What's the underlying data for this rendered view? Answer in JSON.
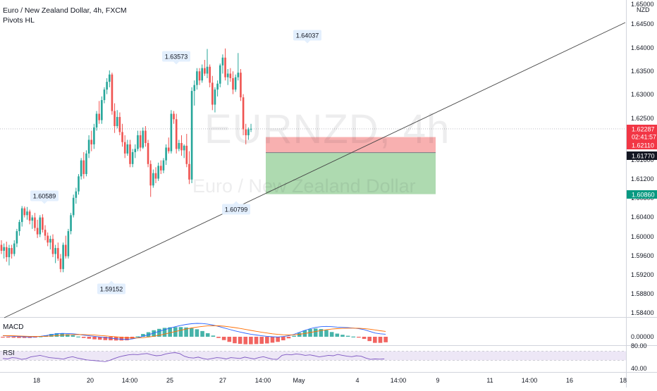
{
  "header": {
    "title": "Euro / New Zealand Dollar, 4h, FXCM",
    "indicator": "Pivots HL"
  },
  "watermark": {
    "symbol": "EURNZD, 4h",
    "name": "Euro / New Zealand Dollar"
  },
  "colors": {
    "up": "#26a69a",
    "down": "#ef5350",
    "stop_zone": "#f7a7a7",
    "target_zone": "#a5d6a7",
    "trendline": "#444444",
    "rsi_line": "#7e57c2",
    "rsi_band": "#ede7f6",
    "macd_line": "#2962ff",
    "signal_line": "#ff6d00",
    "price_label_bg": "#f23645",
    "target_label_bg": "#089981",
    "entry_label_bg": "#131722"
  },
  "chart_data": [
    {
      "type": "candlestick",
      "title": "Euro / New Zealand Dollar, 4h, FXCM",
      "currency": "NZD",
      "ylim": [
        1.582,
        1.6505
      ],
      "y_ticks": [
        "1.65000",
        "1.64500",
        "1.64000",
        "1.63500",
        "1.63000",
        "1.62500",
        "1.62000",
        "1.61600",
        "1.61200",
        "1.60800",
        "1.60400",
        "1.60000",
        "1.59600",
        "1.59200",
        "1.58800",
        "1.58400"
      ],
      "x_ticks": [
        "18",
        "20",
        "14:00",
        "25",
        "27",
        "14:00",
        "May",
        "4",
        "14:00",
        "9",
        "11",
        "14:00",
        "16",
        "18"
      ],
      "ohlc": [
        [
          1.5975,
          1.5985,
          1.5955,
          1.5962
        ],
        [
          1.5962,
          1.5978,
          1.5945,
          1.597
        ],
        [
          1.597,
          1.5982,
          1.5938,
          1.5948
        ],
        [
          1.5948,
          1.5975,
          1.593,
          1.5968
        ],
        [
          1.5968,
          1.5975,
          1.5945,
          1.5955
        ],
        [
          1.5955,
          1.5985,
          1.595,
          1.5978
        ],
        [
          1.5978,
          1.601,
          1.597,
          1.6005
        ],
        [
          1.6005,
          1.603,
          1.5995,
          1.6025
        ],
        [
          1.6025,
          1.606,
          1.6015,
          1.6055
        ],
        [
          1.6055,
          1.6059,
          1.6035,
          1.604
        ],
        [
          1.604,
          1.6058,
          1.603,
          1.6048
        ],
        [
          1.6048,
          1.6052,
          1.602,
          1.6028
        ],
        [
          1.6028,
          1.604,
          1.601,
          1.6035
        ],
        [
          1.6035,
          1.6045,
          1.6005,
          1.6012
        ],
        [
          1.6012,
          1.603,
          1.599,
          1.5998
        ],
        [
          1.5998,
          1.604,
          1.5992,
          1.6035
        ],
        [
          1.6035,
          1.6042,
          1.6002,
          1.6008
        ],
        [
          1.6008,
          1.6018,
          1.5985,
          1.5995
        ],
        [
          1.5995,
          1.6002,
          1.5972,
          1.598
        ],
        [
          1.598,
          1.5995,
          1.5965,
          1.5988
        ],
        [
          1.5988,
          1.5998,
          1.5948,
          1.5955
        ],
        [
          1.5955,
          1.5975,
          1.5935,
          1.5968
        ],
        [
          1.5968,
          1.598,
          1.594,
          1.5945
        ],
        [
          1.5945,
          1.5955,
          1.5915,
          1.5922
        ],
        [
          1.5922,
          1.598,
          1.5915,
          1.5975
        ],
        [
          1.5975,
          1.5995,
          1.5945,
          1.595
        ],
        [
          1.595,
          1.601,
          1.5945,
          1.6005
        ],
        [
          1.6005,
          1.6045,
          1.5998,
          1.604
        ],
        [
          1.604,
          1.6085,
          1.6035,
          1.6078
        ],
        [
          1.6078,
          1.61,
          1.6065,
          1.6092
        ],
        [
          1.6092,
          1.613,
          1.6085,
          1.6125
        ],
        [
          1.6125,
          1.6165,
          1.6118,
          1.616
        ],
        [
          1.616,
          1.6178,
          1.612,
          1.613
        ],
        [
          1.613,
          1.6182,
          1.6125,
          1.6175
        ],
        [
          1.6175,
          1.6215,
          1.6165,
          1.6205
        ],
        [
          1.6205,
          1.6225,
          1.618,
          1.6195
        ],
        [
          1.6195,
          1.624,
          1.6185,
          1.6232
        ],
        [
          1.6232,
          1.6268,
          1.6225,
          1.6262
        ],
        [
          1.6262,
          1.629,
          1.624,
          1.6248
        ],
        [
          1.6248,
          1.63,
          1.624,
          1.6292
        ],
        [
          1.6292,
          1.632,
          1.6285,
          1.6315
        ],
        [
          1.6315,
          1.634,
          1.6305,
          1.6332
        ],
        [
          1.6332,
          1.6357,
          1.632,
          1.6348
        ],
        [
          1.6348,
          1.6352,
          1.626,
          1.6268
        ],
        [
          1.6268,
          1.6285,
          1.622,
          1.6235
        ],
        [
          1.6235,
          1.627,
          1.623,
          1.6255
        ],
        [
          1.6255,
          1.6265,
          1.6215,
          1.6222
        ],
        [
          1.6222,
          1.624,
          1.619,
          1.62
        ],
        [
          1.62,
          1.6215,
          1.6165,
          1.6175
        ],
        [
          1.6175,
          1.6205,
          1.617,
          1.6195
        ],
        [
          1.6195,
          1.6205,
          1.6145,
          1.6152
        ],
        [
          1.6152,
          1.6185,
          1.6145,
          1.6178
        ],
        [
          1.6178,
          1.6195,
          1.6165,
          1.6185
        ],
        [
          1.6185,
          1.6225,
          1.618,
          1.6215
        ],
        [
          1.6215,
          1.6225,
          1.618,
          1.6188
        ],
        [
          1.6188,
          1.6232,
          1.6185,
          1.6225
        ],
        [
          1.6225,
          1.6235,
          1.619,
          1.6198
        ],
        [
          1.6198,
          1.6205,
          1.6145,
          1.6152
        ],
        [
          1.6152,
          1.616,
          1.608,
          1.6105
        ],
        [
          1.6105,
          1.614,
          1.61,
          1.6132
        ],
        [
          1.6132,
          1.6145,
          1.611,
          1.612
        ],
        [
          1.612,
          1.6155,
          1.6115,
          1.6148
        ],
        [
          1.6148,
          1.616,
          1.613,
          1.6138
        ],
        [
          1.6138,
          1.6165,
          1.6132,
          1.616
        ],
        [
          1.616,
          1.6195,
          1.615,
          1.6188
        ],
        [
          1.6188,
          1.621,
          1.6175,
          1.618
        ],
        [
          1.618,
          1.627,
          1.6175,
          1.6262
        ],
        [
          1.6262,
          1.6268,
          1.624,
          1.625
        ],
        [
          1.625,
          1.6262,
          1.6175,
          1.6185
        ],
        [
          1.6185,
          1.6205,
          1.618,
          1.6198
        ],
        [
          1.6198,
          1.6215,
          1.617,
          1.6182
        ],
        [
          1.6182,
          1.6195,
          1.6165,
          1.6192
        ],
        [
          1.6192,
          1.6218,
          1.6145,
          1.6152
        ],
        [
          1.6152,
          1.618,
          1.6108,
          1.6118
        ],
        [
          1.6118,
          1.632,
          1.611,
          1.6312
        ],
        [
          1.6312,
          1.6335,
          1.628,
          1.6325
        ],
        [
          1.6325,
          1.6362,
          1.6315,
          1.6355
        ],
        [
          1.6355,
          1.6362,
          1.6325,
          1.6335
        ],
        [
          1.6335,
          1.637,
          1.633,
          1.6362
        ],
        [
          1.6362,
          1.638,
          1.6345,
          1.635
        ],
        [
          1.635,
          1.6404,
          1.634,
          1.6365
        ],
        [
          1.6365,
          1.637,
          1.632,
          1.633
        ],
        [
          1.633,
          1.6345,
          1.627,
          1.6282
        ],
        [
          1.6282,
          1.632,
          1.6265,
          1.6315
        ],
        [
          1.6315,
          1.6335,
          1.63,
          1.6328
        ],
        [
          1.6328,
          1.6372,
          1.632,
          1.6368
        ],
        [
          1.6368,
          1.6392,
          1.635,
          1.6385
        ],
        [
          1.6385,
          1.6405,
          1.6335,
          1.6342
        ],
        [
          1.6342,
          1.636,
          1.6325,
          1.635
        ],
        [
          1.635,
          1.6362,
          1.6332,
          1.634
        ],
        [
          1.634,
          1.6355,
          1.6305,
          1.6315
        ],
        [
          1.6315,
          1.6348,
          1.631,
          1.6342
        ],
        [
          1.6342,
          1.6395,
          1.6335,
          1.6352
        ],
        [
          1.6352,
          1.636,
          1.629,
          1.6298
        ],
        [
          1.6298,
          1.6305,
          1.6215,
          1.6228
        ],
        [
          1.6228,
          1.624,
          1.6195,
          1.6215
        ],
        [
          1.6215,
          1.6232,
          1.6205,
          1.6228
        ],
        [
          1.6228,
          1.624,
          1.6222,
          1.6229
        ]
      ],
      "pivot_labels": [
        {
          "text": "1.60589",
          "kind": "high"
        },
        {
          "text": "1.59152",
          "kind": "low"
        },
        {
          "text": "1.63573",
          "kind": "high"
        },
        {
          "text": "1.60799",
          "kind": "low"
        },
        {
          "text": "1.64037",
          "kind": "high"
        }
      ],
      "trendline": {
        "from": {
          "bar": 0,
          "price": 1.5835
        },
        "to": {
          "bar": 150,
          "price": 1.646
        }
      },
      "position": {
        "entry": 1.6177,
        "stop": 1.6211,
        "target": 1.6086,
        "start_bar": 100,
        "end_bar": 118
      },
      "price_labels": [
        {
          "text": "1.62287",
          "kind": "last"
        },
        {
          "text": "02:41:57",
          "kind": "countdown"
        },
        {
          "text": "1.62110",
          "kind": "stop"
        },
        {
          "text": "1.61770",
          "kind": "entry"
        },
        {
          "text": "1.60860",
          "kind": "target"
        }
      ]
    },
    {
      "type": "line",
      "title": "MACD",
      "y_ticks": [
        "0.00000"
      ],
      "series": [
        {
          "kind": "macd",
          "values": [
            0.1,
            0.08,
            0.05,
            0.02,
            0.0,
            -0.02,
            0.0,
            0.05,
            0.12,
            0.22,
            0.3,
            0.34,
            0.33,
            0.3,
            0.24,
            0.16,
            0.1,
            0.04,
            -0.02,
            -0.08,
            -0.14,
            -0.2,
            -0.25,
            -0.28,
            -0.22,
            -0.1,
            0.05,
            0.2,
            0.38,
            0.55,
            0.72,
            0.88,
            1.02,
            1.15,
            1.25,
            1.32,
            1.36,
            1.34,
            1.28,
            1.18,
            1.05,
            0.9,
            0.75,
            0.6,
            0.48,
            0.36,
            0.26,
            0.18,
            0.1,
            0.04,
            0.0,
            -0.02,
            0.02,
            0.1,
            0.25,
            0.45,
            0.65,
            0.82,
            0.95,
            1.02,
            1.05,
            1.02,
            0.98,
            0.95,
            0.92,
            0.88,
            0.82,
            0.72,
            0.55,
            0.38,
            0.3,
            0.26
          ]
        },
        {
          "kind": "signal",
          "values": [
            0.12,
            0.11,
            0.1,
            0.08,
            0.06,
            0.04,
            0.03,
            0.03,
            0.05,
            0.08,
            0.12,
            0.17,
            0.2,
            0.22,
            0.23,
            0.22,
            0.2,
            0.17,
            0.13,
            0.09,
            0.04,
            -0.01,
            -0.06,
            -0.1,
            -0.12,
            -0.12,
            -0.09,
            -0.03,
            0.05,
            0.15,
            0.27,
            0.4,
            0.53,
            0.66,
            0.78,
            0.89,
            0.98,
            1.05,
            1.1,
            1.12,
            1.11,
            1.07,
            1.01,
            0.93,
            0.84,
            0.74,
            0.64,
            0.55,
            0.46,
            0.38,
            0.3,
            0.24,
            0.2,
            0.18,
            0.2,
            0.25,
            0.33,
            0.43,
            0.53,
            0.63,
            0.71,
            0.78,
            0.82,
            0.85,
            0.87,
            0.87,
            0.86,
            0.83,
            0.77,
            0.69,
            0.61,
            0.54
          ]
        }
      ]
    },
    {
      "type": "line",
      "title": "RSI",
      "y_ticks": [
        "80.00",
        "40.00"
      ],
      "series": [
        {
          "kind": "rsi",
          "values": [
            48,
            46,
            52,
            50,
            44,
            47,
            55,
            58,
            62,
            57,
            52,
            50,
            48,
            45,
            52,
            56,
            50,
            46,
            42,
            40,
            38,
            36,
            34,
            40,
            48,
            55,
            60,
            64,
            66,
            65,
            68,
            70,
            64,
            60,
            62,
            68,
            72,
            74,
            70,
            58,
            52,
            50,
            54,
            48,
            44,
            48,
            52,
            50,
            46,
            52,
            50,
            48,
            54,
            50,
            46,
            52,
            56,
            50,
            45,
            44,
            62,
            66,
            64,
            68,
            66,
            62,
            64,
            60,
            55,
            58,
            62,
            60,
            66,
            62,
            58,
            56,
            60,
            58,
            50,
            44,
            46,
            45,
            46
          ]
        }
      ]
    }
  ]
}
